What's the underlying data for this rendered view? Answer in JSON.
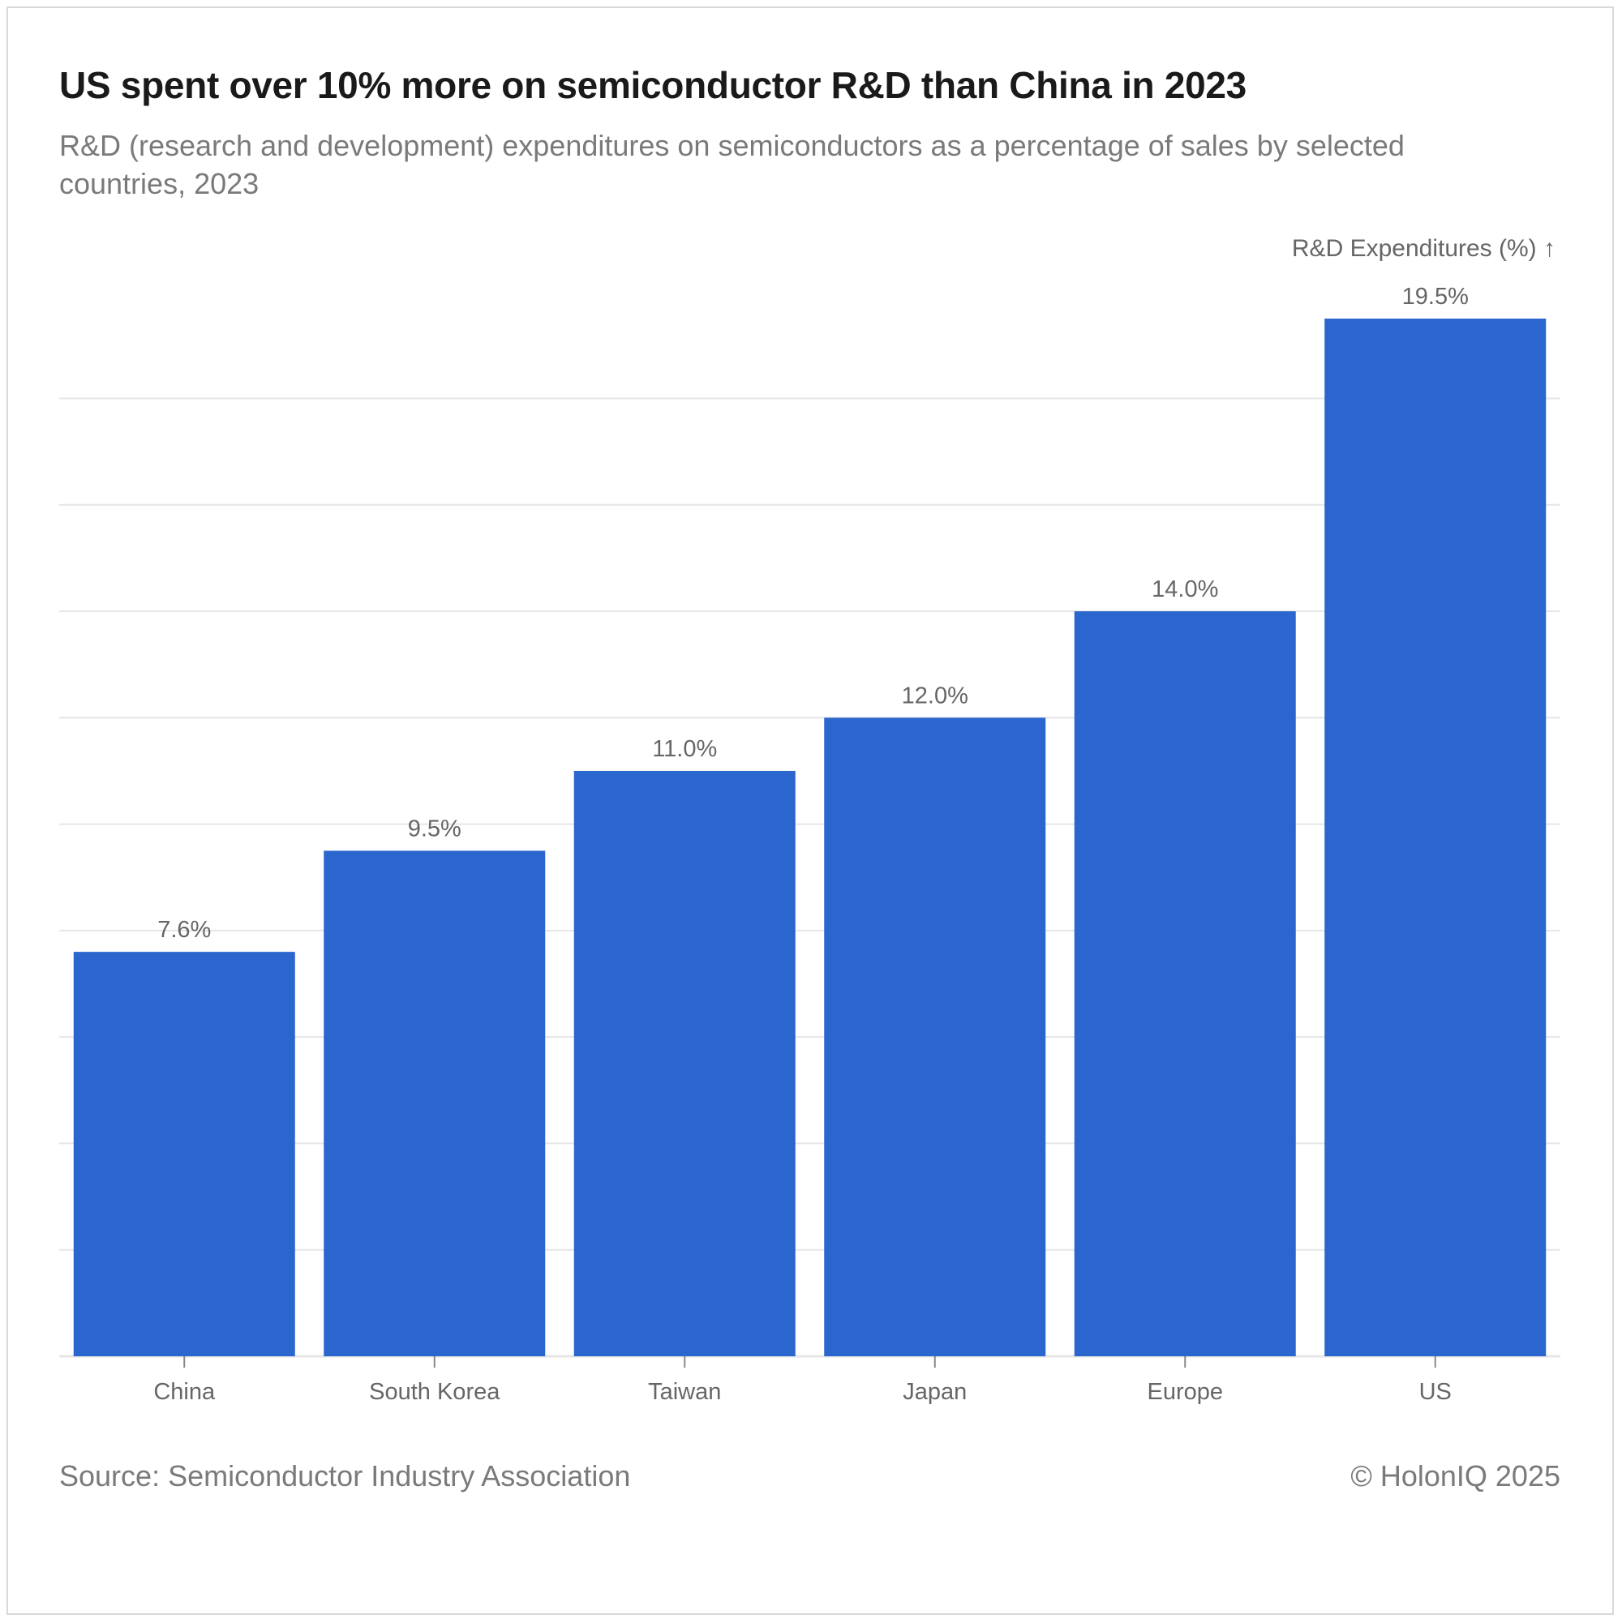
{
  "header": {
    "title": "US spent over 10% more on semiconductor R&D than China in 2023",
    "subtitle": "R&D (research and development) expenditures on semiconductors as a percentage of sales by selected countries, 2023"
  },
  "footer": {
    "source": "Source: Semiconductor Industry Association",
    "credit": "© HolonIQ 2025"
  },
  "colors": {
    "bar": "#2b65ce",
    "grid": "#e6e6e6",
    "text": "#666666"
  },
  "chart_data": {
    "type": "bar",
    "title": "US spent over 10% more on semiconductor R&D than China in 2023",
    "subtitle": "R&D (research and development) expenditures on semiconductors as a percentage of sales by selected countries, 2023",
    "xlabel": "",
    "ylabel": "R&D Expenditures (%) ↑",
    "categories": [
      "China",
      "South Korea",
      "Taiwan",
      "Japan",
      "Europe",
      "US"
    ],
    "values": [
      7.6,
      9.5,
      11.0,
      12.0,
      14.0,
      19.5
    ],
    "data_labels": [
      "7.6%",
      "9.5%",
      "11.0%",
      "12.0%",
      "14.0%",
      "19.5%"
    ],
    "ylim": [
      0,
      19.5
    ],
    "y_gridlines": [
      0,
      2,
      4,
      6,
      8,
      10,
      12,
      14,
      16,
      18
    ],
    "y_tick_labels_shown": false,
    "grid": true,
    "legend": "none"
  }
}
